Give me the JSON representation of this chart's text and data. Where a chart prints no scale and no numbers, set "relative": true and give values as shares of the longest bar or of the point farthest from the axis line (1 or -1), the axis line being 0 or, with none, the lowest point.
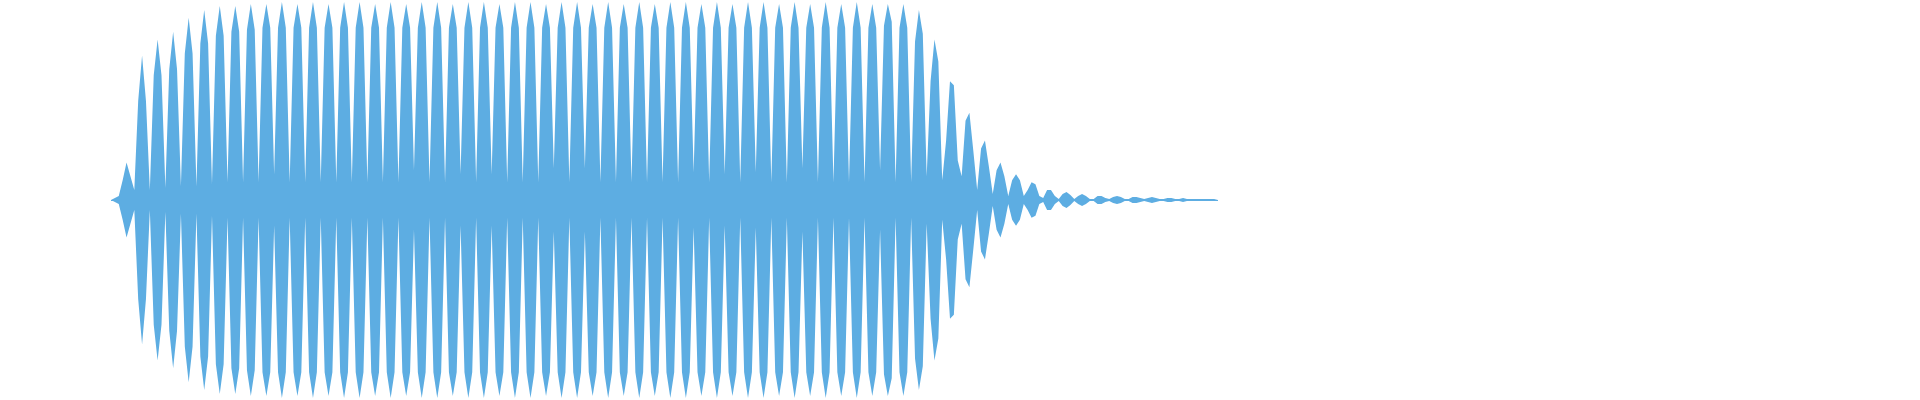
{
  "chart_data": {
    "type": "area",
    "relative": true,
    "categories": [
      null,
      null,
      null,
      null,
      null,
      null,
      null,
      null,
      null,
      null,
      null,
      null,
      null,
      null,
      null,
      null,
      null,
      null,
      null,
      null,
      null,
      null,
      null,
      null,
      null,
      null,
      null,
      null,
      null,
      null,
      null,
      null,
      null,
      null,
      null,
      null,
      null,
      null,
      null,
      null,
      null,
      null,
      null,
      null,
      null,
      null,
      null,
      null,
      null,
      null,
      null,
      null,
      null,
      null,
      null,
      null,
      null,
      null,
      null,
      null,
      null,
      null,
      null,
      null,
      null,
      null,
      null,
      null,
      null,
      null,
      null,
      null,
      null,
      null,
      null,
      null,
      null,
      null,
      null,
      null,
      null,
      null,
      null,
      null,
      null,
      null,
      null,
      null,
      null,
      null,
      null,
      null,
      null,
      null,
      null,
      null,
      null,
      null,
      null,
      null,
      null,
      null,
      null,
      null,
      null,
      null,
      null,
      null,
      null,
      null,
      null,
      null,
      null,
      null,
      null,
      null,
      null,
      null,
      null,
      null,
      null,
      null,
      null,
      null,
      null,
      null,
      null,
      null,
      null,
      null,
      null,
      null,
      null,
      null,
      null,
      null,
      null,
      null,
      null,
      null,
      null,
      null,
      null,
      null,
      null,
      null,
      null,
      null,
      null,
      null,
      null,
      null,
      null,
      null,
      null,
      null,
      null,
      null,
      null,
      null,
      null,
      null,
      null,
      null,
      null,
      null,
      null,
      null,
      null,
      null,
      null,
      null,
      null,
      null,
      null,
      null,
      null,
      null,
      null,
      null,
      null,
      null,
      null,
      null,
      null,
      null,
      null,
      null,
      null,
      null,
      null,
      null,
      null,
      null,
      null,
      null,
      null,
      null,
      null,
      null,
      null,
      null,
      null,
      null,
      null,
      null,
      null,
      null,
      null,
      null,
      null,
      null,
      null,
      null,
      null,
      null,
      null,
      null,
      null,
      null,
      null,
      null,
      null,
      null,
      null,
      null,
      null,
      null,
      null,
      null,
      null,
      null,
      null,
      null,
      null,
      null,
      null,
      null,
      null,
      null,
      null,
      null,
      null,
      null,
      null,
      null,
      null,
      null,
      null,
      null,
      null,
      null,
      null,
      null,
      null,
      null,
      null,
      null,
      null,
      null,
      null,
      null,
      null,
      null,
      null,
      null,
      null,
      null,
      null,
      null,
      null,
      null,
      null,
      null,
      null,
      null,
      null,
      null,
      null,
      null,
      null,
      null,
      null,
      null,
      null,
      null
    ],
    "series": [
      {
        "color": "#5dade2",
        "values": [
          0,
          0.01,
          0.02,
          0.1,
          0.19,
          0.12,
          0.05,
          0.5,
          0.73,
          0.5,
          0.05,
          0.63,
          0.81,
          0.63,
          0.06,
          0.66,
          0.85,
          0.66,
          0.07,
          0.74,
          0.92,
          0.74,
          0.07,
          0.79,
          0.96,
          0.79,
          0.08,
          0.83,
          0.98,
          0.83,
          0.09,
          0.85,
          0.98,
          0.85,
          0.09,
          0.86,
          0.99,
          0.86,
          0.09,
          0.87,
          0.99,
          0.87,
          0.13,
          0.87,
          1,
          0.87,
          0.09,
          0.87,
          0.99,
          0.87,
          0.09,
          0.87,
          1,
          0.87,
          0.09,
          0.87,
          0.99,
          0.87,
          0.09,
          0.87,
          1,
          0.87,
          0.09,
          0.87,
          1,
          0.87,
          0.09,
          0.87,
          0.99,
          0.87,
          0.09,
          0.87,
          1,
          0.87,
          0.09,
          0.87,
          0.99,
          0.87,
          0.15,
          0.87,
          1,
          0.87,
          0.09,
          0.87,
          1,
          0.87,
          0.09,
          0.87,
          0.99,
          0.87,
          0.13,
          0.87,
          1,
          0.87,
          0.09,
          0.87,
          1,
          0.87,
          0.13,
          0.87,
          0.99,
          0.87,
          0.09,
          0.87,
          1,
          0.87,
          0.09,
          0.87,
          1,
          0.87,
          0.09,
          0.87,
          0.99,
          0.87,
          0.16,
          0.87,
          1,
          0.87,
          0.09,
          0.87,
          1,
          0.87,
          0.16,
          0.87,
          0.99,
          0.87,
          0.09,
          0.87,
          1,
          0.87,
          0.09,
          0.87,
          0.99,
          0.87,
          0.09,
          0.87,
          1,
          0.87,
          0.09,
          0.87,
          0.99,
          0.87,
          0.09,
          0.87,
          1,
          0.87,
          0.09,
          0.87,
          1,
          0.87,
          0.14,
          0.87,
          0.99,
          0.87,
          0.09,
          0.87,
          1,
          0.87,
          0.13,
          0.87,
          0.99,
          0.87,
          0.09,
          0.87,
          1,
          0.87,
          0.14,
          0.87,
          1,
          0.87,
          0.09,
          0.87,
          0.99,
          0.87,
          0.09,
          0.87,
          1,
          0.87,
          0.16,
          0.87,
          0.99,
          0.87,
          0.09,
          0.87,
          1,
          0.87,
          0.09,
          0.87,
          0.99,
          0.87,
          0.09,
          0.87,
          1,
          0.87,
          0.09,
          0.87,
          0.99,
          0.87,
          0.15,
          0.88,
          0.99,
          0.9,
          0.09,
          0.87,
          0.99,
          0.87,
          0.09,
          0.8,
          0.96,
          0.84,
          0.12,
          0.6,
          0.81,
          0.7,
          0.1,
          0.3,
          0.6,
          0.58,
          0.2,
          0.12,
          0.4,
          0.44,
          0.25,
          0.05,
          0.26,
          0.3,
          0.17,
          0.03,
          0.15,
          0.19,
          0.12,
          0.02,
          0.1,
          0.13,
          0.1,
          0.02,
          0.05,
          0.09,
          0.08,
          0.02,
          0.01,
          0.05,
          0.05,
          0.02,
          0.005,
          0.03,
          0.04,
          0.025,
          0.005,
          0.02,
          0.03,
          0.02,
          0.005,
          0.005,
          0.02,
          0.02,
          0.01,
          0.005,
          0.015,
          0.02,
          0.015,
          0.005,
          0.005,
          0.015,
          0.015,
          0.01,
          0.005,
          0.01,
          0.015,
          0.01,
          0.005,
          0.005,
          0.01,
          0.01,
          0.005,
          0.005,
          0.01,
          0.005,
          0.005,
          0.005,
          0.005,
          0.005,
          0.005,
          0.005,
          0.005,
          0
        ]
      },
      {
        "color": "#5dade2",
        "values": [
          0,
          -0.01,
          -0.02,
          -0.1,
          -0.19,
          -0.12,
          -0.05,
          -0.5,
          -0.73,
          -0.5,
          -0.05,
          -0.63,
          -0.81,
          -0.63,
          -0.06,
          -0.66,
          -0.85,
          -0.66,
          -0.07,
          -0.74,
          -0.92,
          -0.74,
          -0.07,
          -0.79,
          -0.96,
          -0.79,
          -0.08,
          -0.83,
          -0.98,
          -0.83,
          -0.09,
          -0.85,
          -0.98,
          -0.85,
          -0.09,
          -0.86,
          -0.99,
          -0.86,
          -0.09,
          -0.87,
          -0.99,
          -0.87,
          -0.13,
          -0.87,
          -1,
          -0.87,
          -0.09,
          -0.87,
          -0.99,
          -0.87,
          -0.09,
          -0.87,
          -1,
          -0.87,
          -0.09,
          -0.87,
          -0.99,
          -0.87,
          -0.09,
          -0.87,
          -1,
          -0.87,
          -0.09,
          -0.87,
          -1,
          -0.87,
          -0.09,
          -0.87,
          -0.99,
          -0.87,
          -0.09,
          -0.87,
          -1,
          -0.87,
          -0.09,
          -0.87,
          -0.99,
          -0.87,
          -0.15,
          -0.87,
          -1,
          -0.87,
          -0.09,
          -0.87,
          -1,
          -0.87,
          -0.09,
          -0.87,
          -0.99,
          -0.87,
          -0.13,
          -0.87,
          -1,
          -0.87,
          -0.09,
          -0.87,
          -1,
          -0.87,
          -0.13,
          -0.87,
          -0.99,
          -0.87,
          -0.09,
          -0.87,
          -1,
          -0.87,
          -0.09,
          -0.87,
          -1,
          -0.87,
          -0.09,
          -0.87,
          -0.99,
          -0.87,
          -0.16,
          -0.87,
          -1,
          -0.87,
          -0.09,
          -0.87,
          -1,
          -0.87,
          -0.16,
          -0.87,
          -0.99,
          -0.87,
          -0.09,
          -0.87,
          -1,
          -0.87,
          -0.09,
          -0.87,
          -0.99,
          -0.87,
          -0.09,
          -0.87,
          -1,
          -0.87,
          -0.09,
          -0.87,
          -0.99,
          -0.87,
          -0.09,
          -0.87,
          -1,
          -0.87,
          -0.09,
          -0.87,
          -1,
          -0.87,
          -0.14,
          -0.87,
          -0.99,
          -0.87,
          -0.09,
          -0.87,
          -1,
          -0.87,
          -0.13,
          -0.87,
          -0.99,
          -0.87,
          -0.09,
          -0.87,
          -1,
          -0.87,
          -0.14,
          -0.87,
          -1,
          -0.87,
          -0.09,
          -0.87,
          -0.99,
          -0.87,
          -0.09,
          -0.87,
          -1,
          -0.87,
          -0.16,
          -0.87,
          -0.99,
          -0.87,
          -0.09,
          -0.87,
          -1,
          -0.87,
          -0.09,
          -0.87,
          -0.99,
          -0.87,
          -0.09,
          -0.87,
          -1,
          -0.87,
          -0.09,
          -0.87,
          -0.99,
          -0.87,
          -0.15,
          -0.88,
          -0.99,
          -0.9,
          -0.09,
          -0.87,
          -0.99,
          -0.87,
          -0.09,
          -0.8,
          -0.96,
          -0.84,
          -0.12,
          -0.6,
          -0.81,
          -0.7,
          -0.1,
          -0.3,
          -0.6,
          -0.58,
          -0.2,
          -0.12,
          -0.4,
          -0.44,
          -0.25,
          -0.05,
          -0.26,
          -0.3,
          -0.17,
          -0.03,
          -0.15,
          -0.19,
          -0.12,
          -0.02,
          -0.1,
          -0.13,
          -0.1,
          -0.02,
          -0.05,
          -0.09,
          -0.08,
          -0.02,
          -0.01,
          -0.05,
          -0.05,
          -0.02,
          -0.005,
          -0.03,
          -0.04,
          -0.025,
          -0.005,
          -0.02,
          -0.03,
          -0.02,
          -0.005,
          -0.005,
          -0.02,
          -0.02,
          -0.01,
          -0.005,
          -0.015,
          -0.02,
          -0.015,
          -0.005,
          -0.005,
          -0.015,
          -0.015,
          -0.01,
          -0.005,
          -0.01,
          -0.015,
          -0.01,
          -0.005,
          -0.005,
          -0.01,
          -0.01,
          -0.005,
          -0.005,
          -0.01,
          -0.005,
          -0.005,
          -0.005,
          -0.005,
          -0.005,
          -0.005,
          -0.005,
          -0.005,
          0
        ]
      }
    ]
  }
}
